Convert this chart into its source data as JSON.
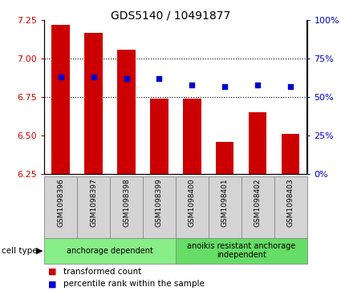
{
  "title": "GDS5140 / 10491877",
  "samples": [
    "GSM1098396",
    "GSM1098397",
    "GSM1098398",
    "GSM1098399",
    "GSM1098400",
    "GSM1098401",
    "GSM1098402",
    "GSM1098403"
  ],
  "bar_values": [
    7.22,
    7.17,
    7.06,
    6.74,
    6.74,
    6.46,
    6.65,
    6.51
  ],
  "dot_values_pct": [
    63,
    63,
    62,
    62,
    58,
    57,
    58,
    57
  ],
  "ylim_left": [
    6.25,
    7.25
  ],
  "yticks_left": [
    6.25,
    6.5,
    6.75,
    7.0,
    7.25
  ],
  "ylim_right": [
    0,
    100
  ],
  "yticks_right": [
    0,
    25,
    50,
    75,
    100
  ],
  "ytick_labels_right": [
    "0%",
    "25%",
    "50%",
    "75%",
    "100%"
  ],
  "bar_color": "#cc0000",
  "dot_color": "#0000cc",
  "bar_bottom": 6.25,
  "groups": [
    {
      "label": "anchorage dependent",
      "start": 0,
      "end": 3,
      "color": "#88ee88"
    },
    {
      "label": "anoikis resistant anchorage\nindependent",
      "start": 4,
      "end": 7,
      "color": "#66dd66"
    }
  ],
  "sample_box_color": "#d4d4d4",
  "cell_type_label": "cell type",
  "legend_bar_label": "transformed count",
  "legend_dot_label": "percentile rank within the sample",
  "plot_bg_color": "#ffffff",
  "left_tick_color": "#cc0000",
  "right_tick_color": "#0000cc",
  "gridline_y": [
    6.75,
    7.0
  ],
  "bar_width": 0.55
}
